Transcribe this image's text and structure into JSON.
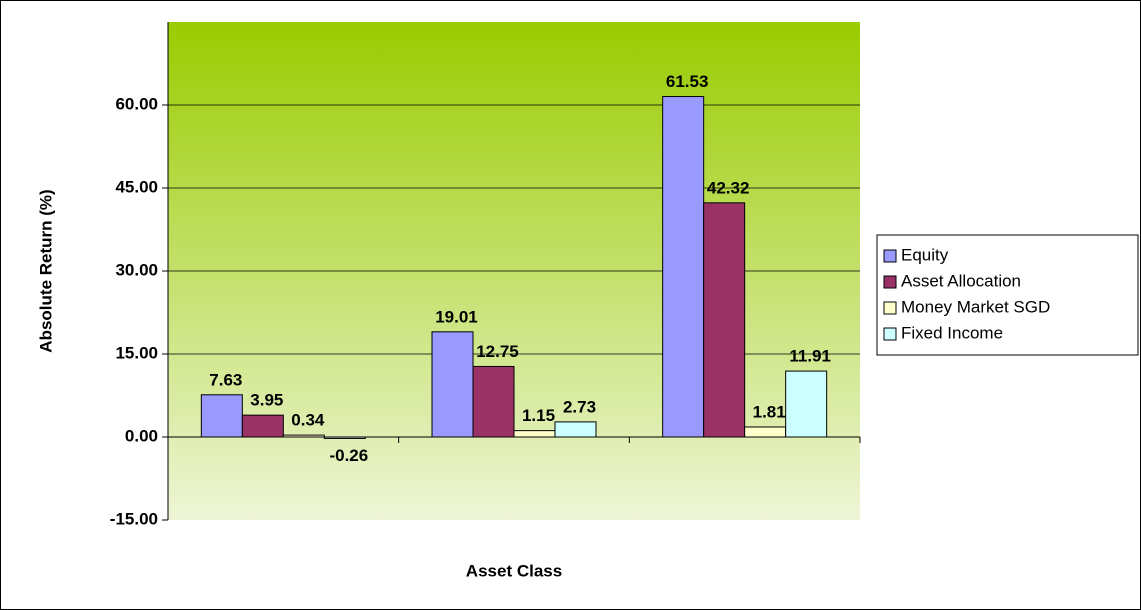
{
  "chart_data": {
    "type": "bar",
    "xlabel": "Asset Class",
    "ylabel": "Absolute Return (%)",
    "categories": [
      null,
      null,
      null
    ],
    "series": [
      {
        "name": "Equity",
        "color": "#9999ff",
        "values": [
          7.63,
          19.01,
          61.53
        ]
      },
      {
        "name": "Asset Allocation",
        "color": "#993366",
        "values": [
          3.95,
          12.75,
          42.32
        ]
      },
      {
        "name": "Money Market SGD",
        "color": "#ffffcc",
        "values": [
          0.34,
          1.15,
          1.81
        ]
      },
      {
        "name": "Fixed Income",
        "color": "#ccffff",
        "values": [
          -0.26,
          2.73,
          11.91
        ]
      }
    ],
    "ylim": [
      -15,
      75
    ],
    "yticks": [
      {
        "value": -15,
        "label": "-15.00"
      },
      {
        "value": 0,
        "label": "0.00"
      },
      {
        "value": 15,
        "label": "15.00"
      },
      {
        "value": 30,
        "label": "30.00"
      },
      {
        "value": 45,
        "label": "45.00"
      },
      {
        "value": 60,
        "label": "60.00"
      }
    ],
    "grid": true,
    "legend": "right"
  }
}
